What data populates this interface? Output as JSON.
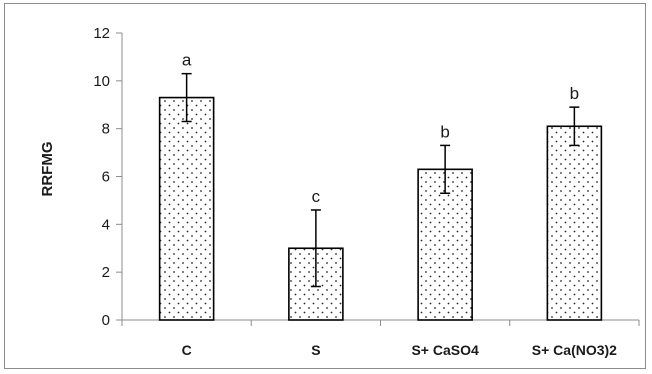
{
  "chart_data": {
    "type": "bar",
    "title": "",
    "xlabel": "",
    "ylabel": "RRFMG",
    "ylim": [
      0,
      12
    ],
    "yticks": [
      0,
      2,
      4,
      6,
      8,
      10,
      12
    ],
    "categories": [
      "C",
      "S",
      "S+ CaSO4",
      "S+ Ca(NO3)2"
    ],
    "values": [
      9.3,
      3.0,
      6.3,
      8.1
    ],
    "errors": [
      1.0,
      1.6,
      1.0,
      0.8
    ],
    "significance": [
      "a",
      "c",
      "b",
      "b"
    ],
    "grid": false,
    "bar_fill": "dotted",
    "colors": {
      "bar_edge": "#000000",
      "bar_dot": "#2a2a2a",
      "axis": "#8c8c8c"
    }
  }
}
